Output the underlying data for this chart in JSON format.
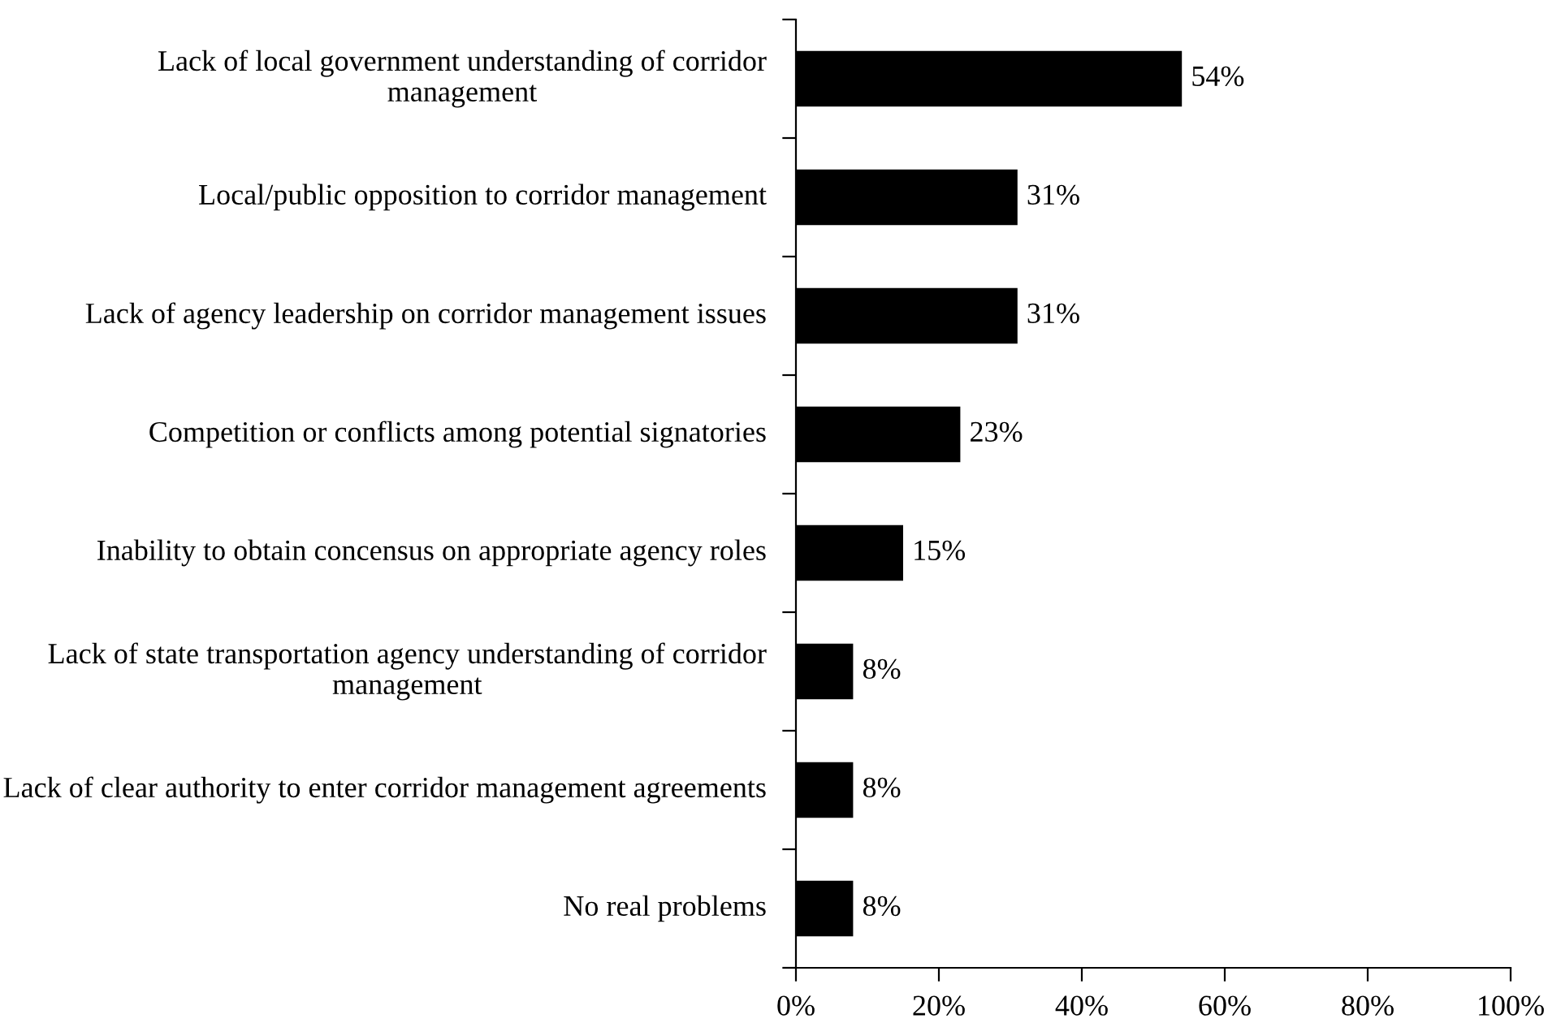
{
  "chart_data": {
    "type": "bar",
    "orientation": "horizontal",
    "categories": [
      "Lack of local government understanding of corridor management",
      "Local/public opposition to corridor management",
      "Lack of agency leadership on corridor management issues",
      "Competition or conflicts among potential signatories",
      "Inability to obtain concensus on appropriate agency roles",
      "Lack of state transportation agency understanding of corridor management",
      "Lack of clear authority to enter corridor management agreements",
      "No real problems"
    ],
    "values": [
      54,
      31,
      31,
      23,
      15,
      8,
      8,
      8
    ],
    "value_labels": [
      "54%",
      "31%",
      "31%",
      "23%",
      "15%",
      "8%",
      "8%",
      "8%"
    ],
    "color": "#000000",
    "xlim": [
      0,
      100
    ],
    "xticks": [
      {
        "value": 0,
        "label": "0%"
      },
      {
        "value": 20,
        "label": "20%"
      },
      {
        "value": 40,
        "label": "40%"
      },
      {
        "value": 60,
        "label": "60%"
      },
      {
        "value": 80,
        "label": "80%"
      },
      {
        "value": 100,
        "label": "100%"
      }
    ],
    "grid": false,
    "legend": false
  }
}
